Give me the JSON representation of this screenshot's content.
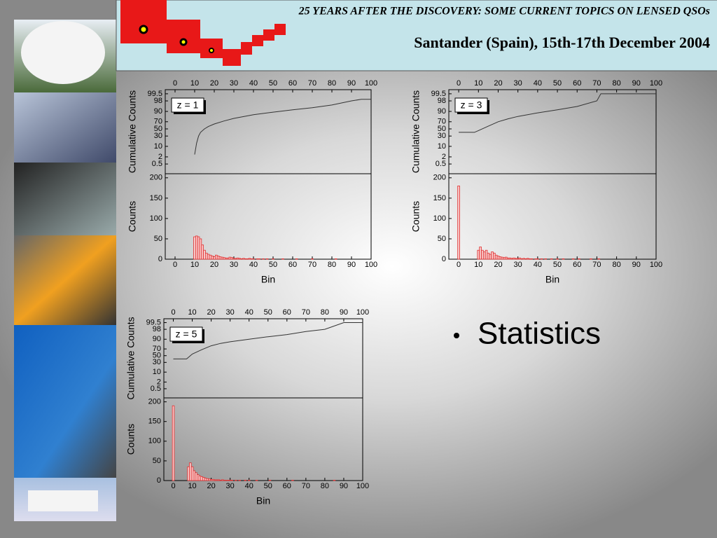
{
  "header": {
    "title": "25 YEARS AFTER THE DISCOVERY: SOME CURRENT TOPICS ON LENSED QSOs",
    "subtitle": "Santander (Spain), 15th-17th December 2004"
  },
  "bullet": "Statistics",
  "chart_data": [
    {
      "type": "line",
      "annotation": "z = 1",
      "ylabel": "Cumulative Counts",
      "yscale": "probability",
      "color": "#333333",
      "x": [
        10,
        11,
        12,
        13,
        15,
        17,
        20,
        25,
        30,
        40,
        50,
        60,
        70,
        80,
        90,
        95,
        100
      ],
      "values": [
        3,
        15,
        30,
        40,
        50,
        57,
        64,
        72,
        78,
        85,
        89,
        92,
        94,
        96,
        98,
        98.5,
        98.5
      ],
      "xlim": [
        -5,
        100
      ],
      "xticks": [
        0,
        10,
        20,
        30,
        40,
        50,
        60,
        70,
        80,
        90,
        100
      ],
      "ylim": [
        0.05,
        99.8
      ],
      "yticks": [
        0.5,
        2,
        10,
        30,
        50,
        70,
        90,
        98,
        99.5
      ]
    },
    {
      "type": "histogram",
      "ylabel": "Counts",
      "xlabel": "Bin",
      "color": "#e03030",
      "bins": [
        -0.5,
        0.5,
        1.5,
        2.5,
        3.5,
        4.5,
        5.5,
        6.5,
        7.5,
        8.5,
        9.5,
        10.5,
        11.5,
        12.5,
        13.5,
        14.5,
        15.5,
        16.5,
        17.5,
        18.5,
        19.5,
        20.5,
        21.5,
        22.5,
        23.5,
        24.5,
        25.5,
        26.5,
        27.5,
        28.5,
        29.5,
        30.5,
        31.5,
        32.5,
        33.5,
        34.5,
        35.5,
        36.5,
        37.5,
        38.5,
        39.5,
        40.5,
        41.5,
        42.5,
        43.5,
        44.5,
        45.5,
        46.5,
        47.5,
        48.5,
        49.5,
        50.5,
        51.5,
        52.5,
        53.5,
        54.5,
        55.5,
        56.5,
        57.5,
        58.5,
        59.5,
        60.5,
        61.5,
        62.5,
        63.5,
        64.5,
        65.5,
        66.5,
        67.5,
        68.5,
        69.5,
        70.5,
        71.5,
        72.5,
        73.5,
        74.5,
        75.5,
        76.5,
        77.5,
        78.5,
        79.5,
        80.5,
        81.5,
        82.5,
        83.5,
        84.5,
        85.5,
        86.5,
        87.5,
        88.5,
        89.5,
        90.5,
        91.5,
        92.5,
        93.5,
        94.5,
        95.5,
        96.5,
        97.5,
        98.5,
        99.5
      ],
      "counts": [
        0,
        0,
        0,
        0,
        0,
        0,
        0,
        0,
        0,
        0,
        55,
        57,
        55,
        50,
        35,
        22,
        15,
        12,
        10,
        8,
        6,
        10,
        8,
        6,
        5,
        4,
        3,
        3,
        5,
        4,
        2,
        2,
        3,
        2,
        1,
        2,
        1,
        1,
        2,
        1,
        1,
        0,
        1,
        1,
        0,
        1,
        0,
        1,
        0,
        0,
        1,
        0,
        0,
        0,
        0,
        1,
        0,
        0,
        0,
        0,
        0,
        0,
        1,
        0,
        0,
        0,
        0,
        0,
        0,
        0,
        1,
        0,
        0,
        0,
        0,
        0,
        0,
        0,
        0,
        0,
        0,
        0,
        1,
        0,
        0,
        0,
        0,
        0,
        0,
        0,
        0,
        0,
        0,
        0,
        0,
        0,
        0,
        0,
        0,
        0
      ],
      "xlim": [
        -5,
        100
      ],
      "xticks": [
        0,
        10,
        20,
        30,
        40,
        50,
        60,
        70,
        80,
        90,
        100
      ],
      "ylim": [
        0,
        210
      ],
      "yticks": [
        0,
        50,
        100,
        150,
        200
      ]
    },
    {
      "type": "line",
      "annotation": "z = 3",
      "ylabel": "Cumulative Counts",
      "yscale": "probability",
      "color": "#333333",
      "x": [
        0,
        8,
        10,
        15,
        20,
        25,
        30,
        40,
        50,
        60,
        70,
        72,
        80,
        100
      ],
      "values": [
        40,
        40,
        45,
        58,
        70,
        77,
        82,
        88,
        92,
        95,
        98,
        99.5,
        99.5,
        99.5
      ],
      "xlim": [
        -5,
        100
      ],
      "xticks": [
        0,
        10,
        20,
        30,
        40,
        50,
        60,
        70,
        80,
        90,
        100
      ],
      "ylim": [
        0.05,
        99.8
      ],
      "yticks": [
        0.5,
        2,
        10,
        30,
        50,
        70,
        90,
        98,
        99.5
      ]
    },
    {
      "type": "histogram",
      "ylabel": "Counts",
      "xlabel": "Bin",
      "color": "#e03030",
      "bins": [
        -0.5,
        0.5,
        1.5,
        2.5,
        3.5,
        4.5,
        5.5,
        6.5,
        7.5,
        8.5,
        9.5,
        10.5,
        11.5,
        12.5,
        13.5,
        14.5,
        15.5,
        16.5,
        17.5,
        18.5,
        19.5,
        20.5,
        21.5,
        22.5,
        23.5,
        24.5,
        25.5,
        26.5,
        27.5,
        28.5,
        29.5,
        30.5,
        31.5,
        32.5,
        33.5,
        34.5,
        35.5,
        36.5,
        37.5,
        38.5,
        39.5,
        40.5,
        41.5,
        42.5,
        43.5,
        44.5,
        45.5,
        46.5,
        47.5,
        48.5,
        49.5,
        50.5,
        51.5,
        52.5,
        53.5,
        54.5,
        55.5,
        56.5,
        57.5,
        58.5,
        59.5,
        60.5,
        61.5,
        62.5,
        63.5,
        64.5,
        65.5,
        66.5,
        67.5,
        68.5,
        69.5,
        70.5,
        71.5,
        72.5,
        73.5,
        74.5,
        75.5,
        76.5,
        77.5,
        78.5,
        79.5,
        80.5,
        81.5,
        82.5,
        83.5,
        84.5,
        85.5,
        86.5,
        87.5,
        88.5,
        89.5,
        90.5,
        91.5,
        92.5,
        93.5,
        94.5,
        95.5,
        96.5,
        97.5,
        98.5,
        99.5
      ],
      "counts": [
        180,
        0,
        0,
        0,
        0,
        0,
        0,
        0,
        0,
        0,
        22,
        30,
        22,
        18,
        22,
        15,
        12,
        18,
        15,
        10,
        8,
        6,
        5,
        4,
        5,
        3,
        3,
        2,
        3,
        2,
        2,
        3,
        1,
        2,
        1,
        2,
        1,
        1,
        0,
        1,
        1,
        0,
        1,
        0,
        1,
        0,
        0,
        1,
        0,
        0,
        1,
        0,
        0,
        1,
        0,
        0,
        0,
        0,
        1,
        0,
        0,
        1,
        0,
        0,
        0,
        0,
        0,
        1,
        0,
        0,
        0,
        1,
        0,
        0,
        0,
        0,
        0,
        0,
        0,
        0,
        0,
        0,
        0,
        0,
        0,
        0,
        0,
        0,
        0,
        0,
        0,
        0,
        0,
        0,
        0,
        0,
        0,
        0,
        0,
        0
      ],
      "xlim": [
        -5,
        100
      ],
      "xticks": [
        0,
        10,
        20,
        30,
        40,
        50,
        60,
        70,
        80,
        90,
        100
      ],
      "ylim": [
        0,
        210
      ],
      "yticks": [
        0,
        50,
        100,
        150,
        200
      ]
    },
    {
      "type": "line",
      "annotation": "z = 5",
      "ylabel": "Cumulative Counts",
      "yscale": "probability",
      "color": "#333333",
      "x": [
        0,
        7,
        10,
        15,
        20,
        25,
        30,
        40,
        50,
        60,
        70,
        80,
        90,
        100
      ],
      "values": [
        40,
        40,
        55,
        68,
        78,
        83,
        86,
        90,
        93,
        95,
        97,
        98,
        99.5,
        99.5
      ],
      "xlim": [
        -5,
        100
      ],
      "xticks": [
        0,
        10,
        20,
        30,
        40,
        50,
        60,
        70,
        80,
        90,
        100
      ],
      "ylim": [
        0.05,
        99.8
      ],
      "yticks": [
        0.5,
        2,
        10,
        30,
        50,
        70,
        90,
        98,
        99.5
      ]
    },
    {
      "type": "histogram",
      "ylabel": "Counts",
      "xlabel": "Bin",
      "color": "#e03030",
      "bins": [
        -0.5,
        0.5,
        1.5,
        2.5,
        3.5,
        4.5,
        5.5,
        6.5,
        7.5,
        8.5,
        9.5,
        10.5,
        11.5,
        12.5,
        13.5,
        14.5,
        15.5,
        16.5,
        17.5,
        18.5,
        19.5,
        20.5,
        21.5,
        22.5,
        23.5,
        24.5,
        25.5,
        26.5,
        27.5,
        28.5,
        29.5,
        30.5,
        31.5,
        32.5,
        33.5,
        34.5,
        35.5,
        36.5,
        37.5,
        38.5,
        39.5,
        40.5,
        41.5,
        42.5,
        43.5,
        44.5,
        45.5,
        46.5,
        47.5,
        48.5,
        49.5,
        50.5,
        51.5,
        52.5,
        53.5,
        54.5,
        55.5,
        56.5,
        57.5,
        58.5,
        59.5,
        60.5,
        61.5,
        62.5,
        63.5,
        64.5,
        65.5,
        66.5,
        67.5,
        68.5,
        69.5,
        70.5,
        71.5,
        72.5,
        73.5,
        74.5,
        75.5,
        76.5,
        77.5,
        78.5,
        79.5,
        80.5,
        81.5,
        82.5,
        83.5,
        84.5,
        85.5,
        86.5,
        87.5,
        88.5,
        89.5,
        90.5,
        91.5,
        92.5,
        93.5,
        94.5,
        95.5,
        96.5,
        97.5,
        98.5,
        99.5
      ],
      "counts": [
        190,
        0,
        0,
        0,
        0,
        0,
        0,
        0,
        35,
        45,
        35,
        25,
        20,
        15,
        12,
        10,
        8,
        6,
        5,
        4,
        3,
        3,
        2,
        2,
        2,
        1,
        2,
        1,
        1,
        1,
        1,
        1,
        0,
        1,
        0,
        1,
        0,
        0,
        1,
        0,
        1,
        0,
        0,
        0,
        1,
        0,
        0,
        0,
        0,
        0,
        0,
        1,
        0,
        0,
        0,
        0,
        0,
        0,
        0,
        0,
        0,
        0,
        0,
        1,
        0,
        0,
        0,
        0,
        0,
        0,
        0,
        0,
        0,
        0,
        0,
        0,
        0,
        0,
        0,
        0,
        0,
        0,
        0,
        0,
        0,
        1,
        0,
        0,
        0,
        0,
        0,
        0,
        0,
        0,
        0,
        0,
        0,
        0,
        0,
        0
      ],
      "xlim": [
        -5,
        100
      ],
      "xticks": [
        0,
        10,
        20,
        30,
        40,
        50,
        60,
        70,
        80,
        90,
        100
      ],
      "ylim": [
        0,
        210
      ],
      "yticks": [
        0,
        50,
        100,
        150,
        200
      ]
    }
  ]
}
